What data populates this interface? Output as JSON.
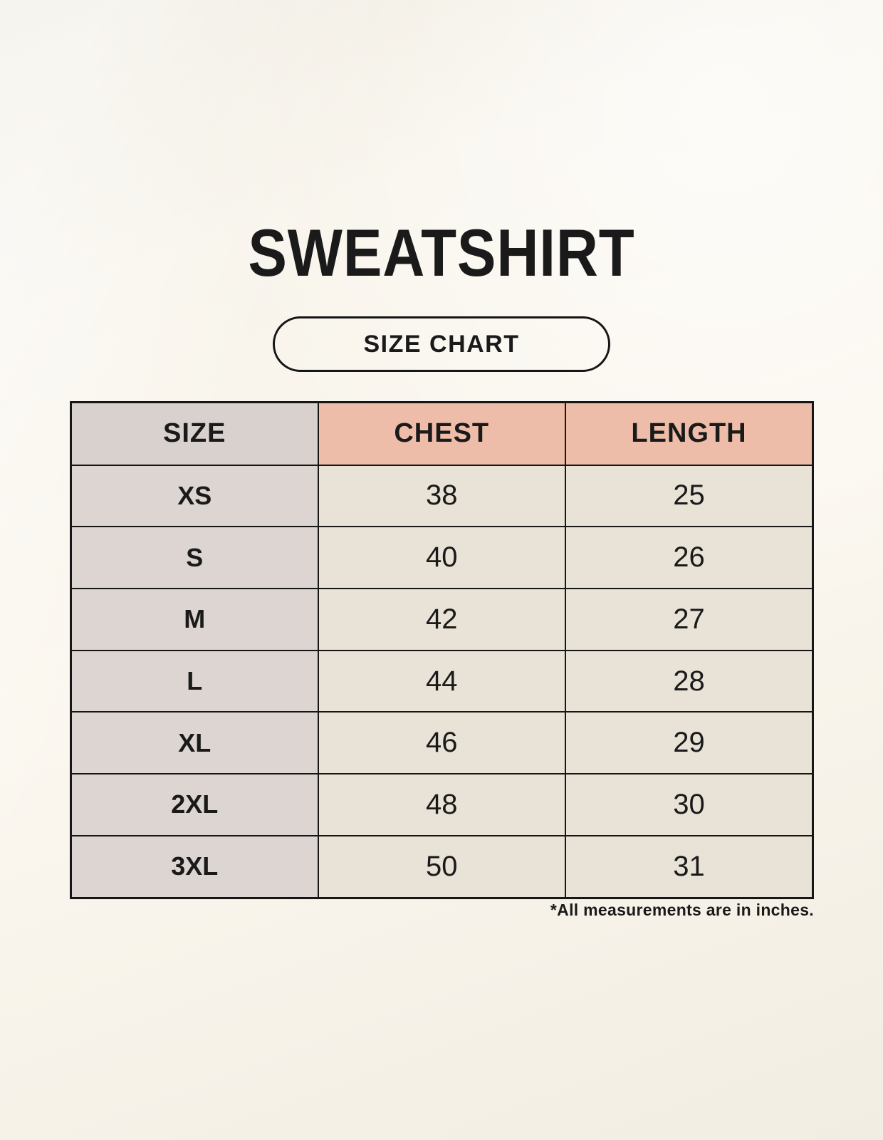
{
  "title": "SWEATSHIRT",
  "size_chart_button_label": "SIZE CHART",
  "footnote": "*All measurements are in inches.",
  "chart_data": {
    "type": "table",
    "title": "SWEATSHIRT",
    "subtitle": "SIZE CHART",
    "columns": [
      "SIZE",
      "CHEST",
      "LENGTH"
    ],
    "rows": [
      [
        "XS",
        38,
        25
      ],
      [
        "S",
        40,
        26
      ],
      [
        "M",
        42,
        27
      ],
      [
        "L",
        44,
        28
      ],
      [
        "XL",
        46,
        29
      ],
      [
        "2XL",
        48,
        30
      ],
      [
        "3XL",
        50,
        31
      ]
    ],
    "units": "inches",
    "note": "*All measurements are in inches."
  },
  "colors": {
    "background": "#f7f3ea",
    "header_size_bg": "#d8d1ce",
    "header_measure_bg": "#eebda9",
    "row_label_bg": "#dcd5d2",
    "cell_bg": "#e9e3d7",
    "border": "#161616",
    "text": "#1a1a1a"
  }
}
